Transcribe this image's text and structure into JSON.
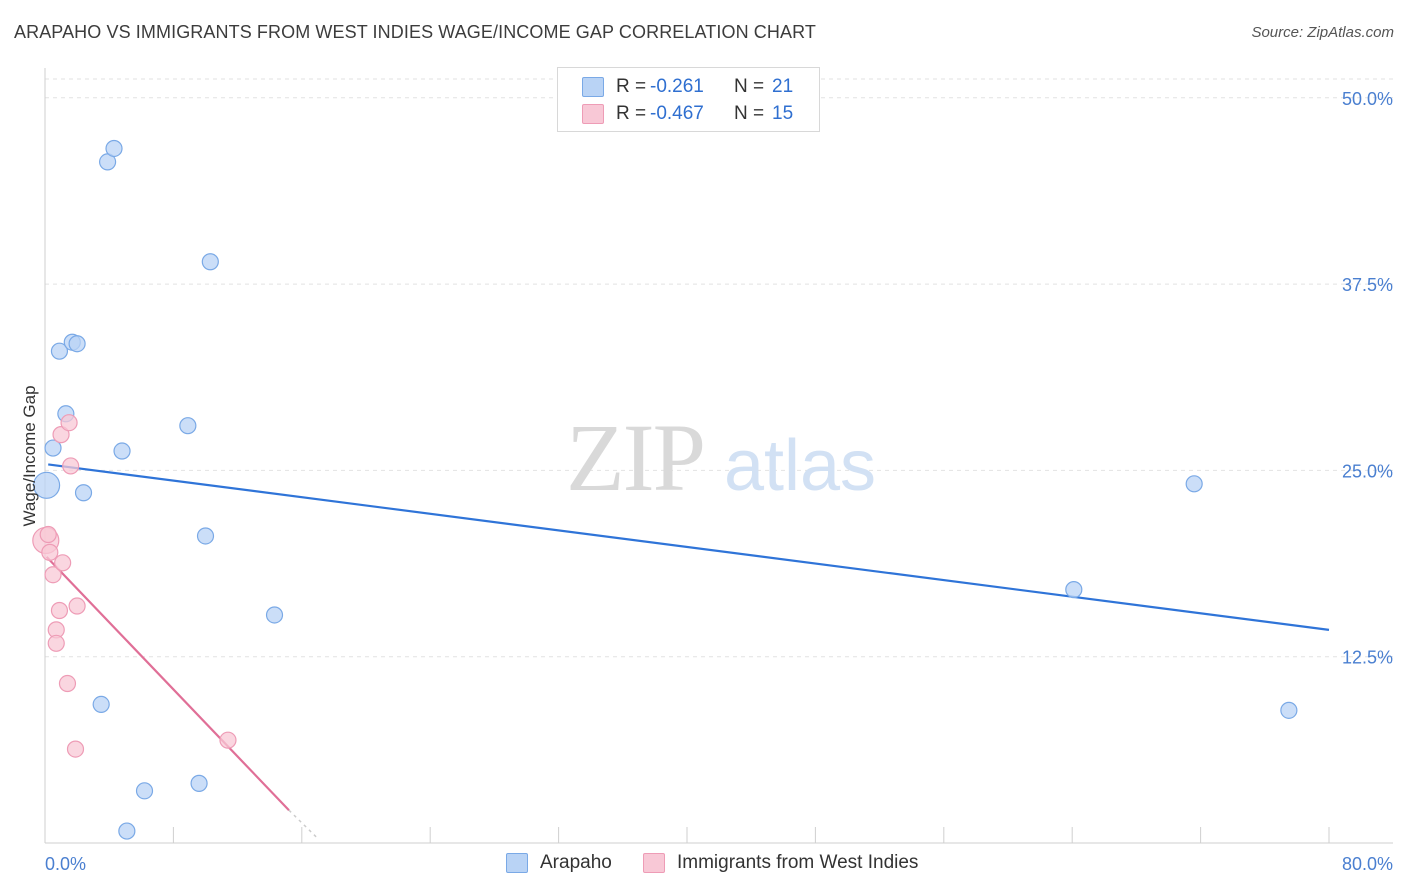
{
  "title": "ARAPAHO VS IMMIGRANTS FROM WEST INDIES WAGE/INCOME GAP CORRELATION CHART",
  "source": "Source: ZipAtlas.com",
  "watermark": {
    "zip": "ZIP",
    "atlas": "atlas"
  },
  "legend": {
    "series": [
      {
        "r_label": "R =",
        "r_value": "-0.261",
        "n_label": "N =",
        "n_value": "21"
      },
      {
        "r_label": "R =",
        "r_value": "-0.467",
        "n_label": "N =",
        "n_value": "15"
      }
    ]
  },
  "bottom_legend": {
    "series1": "Arapaho",
    "series2": "Immigrants from West Indies"
  },
  "colors": {
    "blue_fill": "#b9d3f5",
    "blue_stroke": "#7aa9e6",
    "blue_line": "#2f74d8",
    "pink_fill": "#f8c8d6",
    "pink_stroke": "#ee9cb6",
    "pink_line": "#e06f97",
    "grid": "#e2e2e2",
    "axis_text": "#4a7fd0"
  },
  "chart_data": {
    "type": "scatter",
    "title": "ARAPAHO VS IMMIGRANTS FROM WEST INDIES WAGE/INCOME GAP CORRELATION CHART",
    "xlabel": "",
    "ylabel": "Wage/Income Gap",
    "xlim": [
      0,
      80
    ],
    "ylim": [
      0,
      52
    ],
    "x_tick_labels": [
      {
        "value": 0,
        "label": "0.0%"
      },
      {
        "value": 80,
        "label": "80.0%"
      }
    ],
    "y_ticks": [
      {
        "value": 12.5,
        "label": "12.5%"
      },
      {
        "value": 25.0,
        "label": "25.0%"
      },
      {
        "value": 37.5,
        "label": "37.5%"
      },
      {
        "value": 50.0,
        "label": "50.0%"
      }
    ],
    "series": [
      {
        "name": "Arapaho",
        "color": "blue",
        "points": [
          {
            "x": 0.1,
            "y": 24.0,
            "big": true
          },
          {
            "x": 0.5,
            "y": 26.5
          },
          {
            "x": 0.9,
            "y": 33.0
          },
          {
            "x": 1.3,
            "y": 28.8
          },
          {
            "x": 1.7,
            "y": 33.6
          },
          {
            "x": 2.0,
            "y": 33.5
          },
          {
            "x": 2.4,
            "y": 23.5
          },
          {
            "x": 3.9,
            "y": 45.7
          },
          {
            "x": 4.3,
            "y": 46.6
          },
          {
            "x": 4.8,
            "y": 26.3
          },
          {
            "x": 3.5,
            "y": 9.3
          },
          {
            "x": 6.2,
            "y": 3.5
          },
          {
            "x": 5.1,
            "y": 0.8
          },
          {
            "x": 8.9,
            "y": 28.0
          },
          {
            "x": 10.0,
            "y": 20.6
          },
          {
            "x": 10.3,
            "y": 39.0
          },
          {
            "x": 9.6,
            "y": 4.0
          },
          {
            "x": 14.3,
            "y": 15.3
          },
          {
            "x": 64.1,
            "y": 17.0
          },
          {
            "x": 71.6,
            "y": 24.1
          },
          {
            "x": 77.5,
            "y": 8.9
          }
        ],
        "trend": {
          "x1": 0.2,
          "y1": 25.4,
          "x2": 80.0,
          "y2": 14.3
        }
      },
      {
        "name": "Immigrants from West Indies",
        "color": "pink",
        "points": [
          {
            "x": 0.05,
            "y": 20.3,
            "big": true
          },
          {
            "x": 0.2,
            "y": 20.7
          },
          {
            "x": 0.3,
            "y": 19.5
          },
          {
            "x": 0.5,
            "y": 18.0
          },
          {
            "x": 0.7,
            "y": 14.3
          },
          {
            "x": 0.7,
            "y": 13.4
          },
          {
            "x": 0.9,
            "y": 15.6
          },
          {
            "x": 1.0,
            "y": 27.4
          },
          {
            "x": 1.1,
            "y": 18.8
          },
          {
            "x": 1.4,
            "y": 10.7
          },
          {
            "x": 1.5,
            "y": 28.2
          },
          {
            "x": 1.6,
            "y": 25.3
          },
          {
            "x": 1.9,
            "y": 6.3
          },
          {
            "x": 2.0,
            "y": 15.9
          },
          {
            "x": 11.4,
            "y": 6.9
          }
        ],
        "trend": {
          "x1": 0.1,
          "y1": 19.2,
          "x2": 15.2,
          "y2": 2.2,
          "dash_to": {
            "x": 17.0,
            "y": 0.3
          }
        }
      }
    ]
  }
}
